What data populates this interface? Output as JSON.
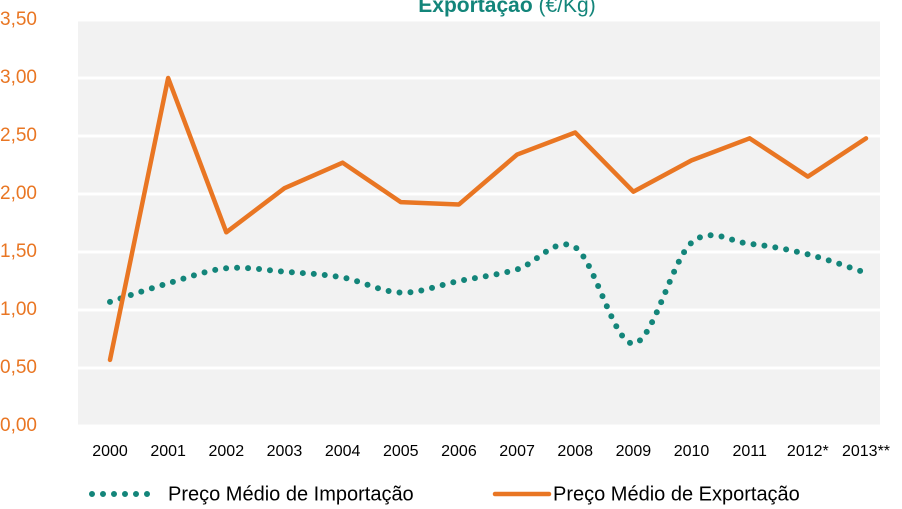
{
  "chart_data": {
    "type": "line",
    "title": "Exportação",
    "title_unit": "(€/Kg)",
    "categories": [
      "2000",
      "2001",
      "2002",
      "2003",
      "2004",
      "2005",
      "2006",
      "2007",
      "2008",
      "2009",
      "2010",
      "2011",
      "2012*",
      "2013**"
    ],
    "series": [
      {
        "name": "Preço Médio de Importação",
        "color": "#13857a",
        "style": "dotted",
        "smooth": true,
        "values": [
          1.07,
          1.23,
          1.36,
          1.33,
          1.28,
          1.15,
          1.25,
          1.35,
          1.54,
          0.71,
          1.58,
          1.57,
          1.48,
          1.32
        ]
      },
      {
        "name": "Preço Médio de Exportação",
        "color": "#e97623",
        "style": "solid",
        "smooth": false,
        "values": [
          0.57,
          3.0,
          1.67,
          2.05,
          2.27,
          1.93,
          1.91,
          2.34,
          2.53,
          2.02,
          2.29,
          2.48,
          2.15,
          2.48
        ]
      }
    ],
    "ylim": [
      0,
      3.5
    ],
    "yticks": [
      {
        "value": 0,
        "label": "0,00"
      },
      {
        "value": 0.5,
        "label": "0,50"
      },
      {
        "value": 1,
        "label": "1,00"
      },
      {
        "value": 1.5,
        "label": "1,50"
      },
      {
        "value": 2,
        "label": "2,00"
      },
      {
        "value": 2.5,
        "label": "2,50"
      },
      {
        "value": 3,
        "label": "3,00"
      },
      {
        "value": 3.5,
        "label": "3,50"
      }
    ],
    "grid": true,
    "legend": "bottom"
  }
}
